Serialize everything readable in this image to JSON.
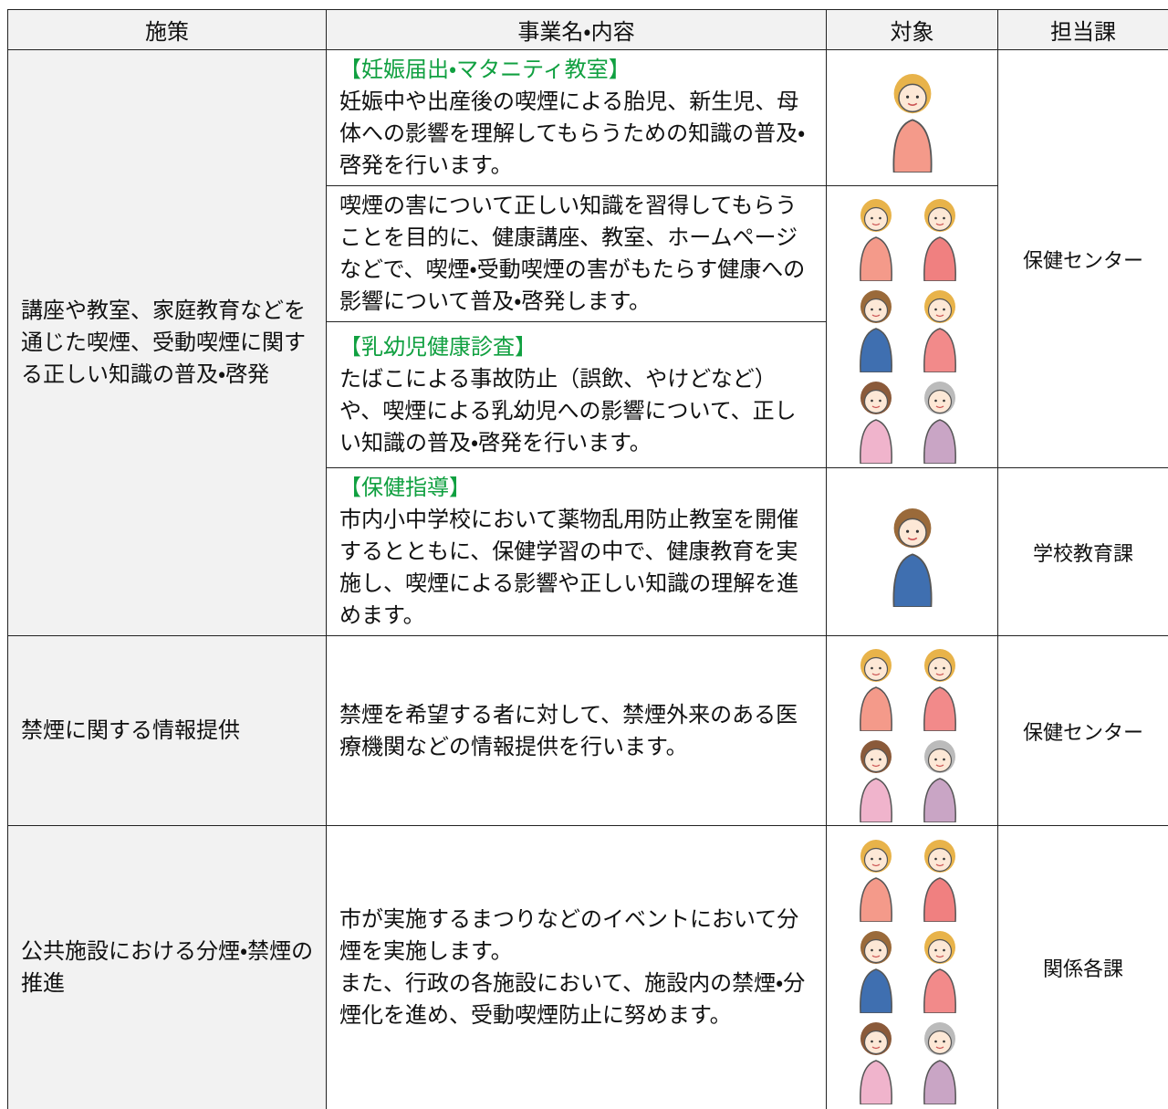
{
  "table": {
    "headers": [
      "施策",
      "事業名・内容",
      "対象",
      "担当課"
    ],
    "sections": [
      {
        "measure": "講座や教室、家庭教育などを通じた喫煙、受動喫煙に関する正しい知識の普及・啓発",
        "items": [
          {
            "title": "【妊娠届出・マタニティ教室】",
            "body": [
              "妊娠中や出産後の喫煙による胎児、新生児、母体への影響を理解してもらうための知識の普及・啓発を行います。"
            ],
            "department": "保健センター"
          },
          {
            "body": [
              "喫煙の害について正しい知識を習得してもらうことを目的に、健康講座、教室、ホームページなどで、喫煙・受動喫煙の害がもたらす健康への影響について普及・啓発します。"
            ]
          },
          {
            "title": "【乳幼児健康診査】",
            "body": [
              "たばこによる事故防止（誤飲、やけどなど）や、喫煙による乳幼児への影響について、正しい知識の普及・啓発を行います。"
            ]
          },
          {
            "title": "【保健指導】",
            "body": [
              "市内小中学校において薬物乱用防止教室を開催するとともに、保健学習の中で、健康教育を実施し、喫煙による影響や正しい知識の理解を進めます。"
            ],
            "department": "学校教育課"
          }
        ]
      },
      {
        "measure": "禁煙に関する情報提供",
        "items": [
          {
            "body": [
              "禁煙を希望する者に対して、禁煙外来のある医療機関などの情報提供を行います。"
            ],
            "department": "保健センター"
          }
        ]
      },
      {
        "measure": "公共施設における分煙・禁煙の推進",
        "items": [
          {
            "body": [
              "市が実施するまつりなどのイベントにおいて分煙を実施します。",
              "また、行政の各施設において、施設内の禁煙・分煙化を進め、受動喫煙防止に努めます。"
            ],
            "department": "関係各課"
          }
        ]
      }
    ]
  }
}
